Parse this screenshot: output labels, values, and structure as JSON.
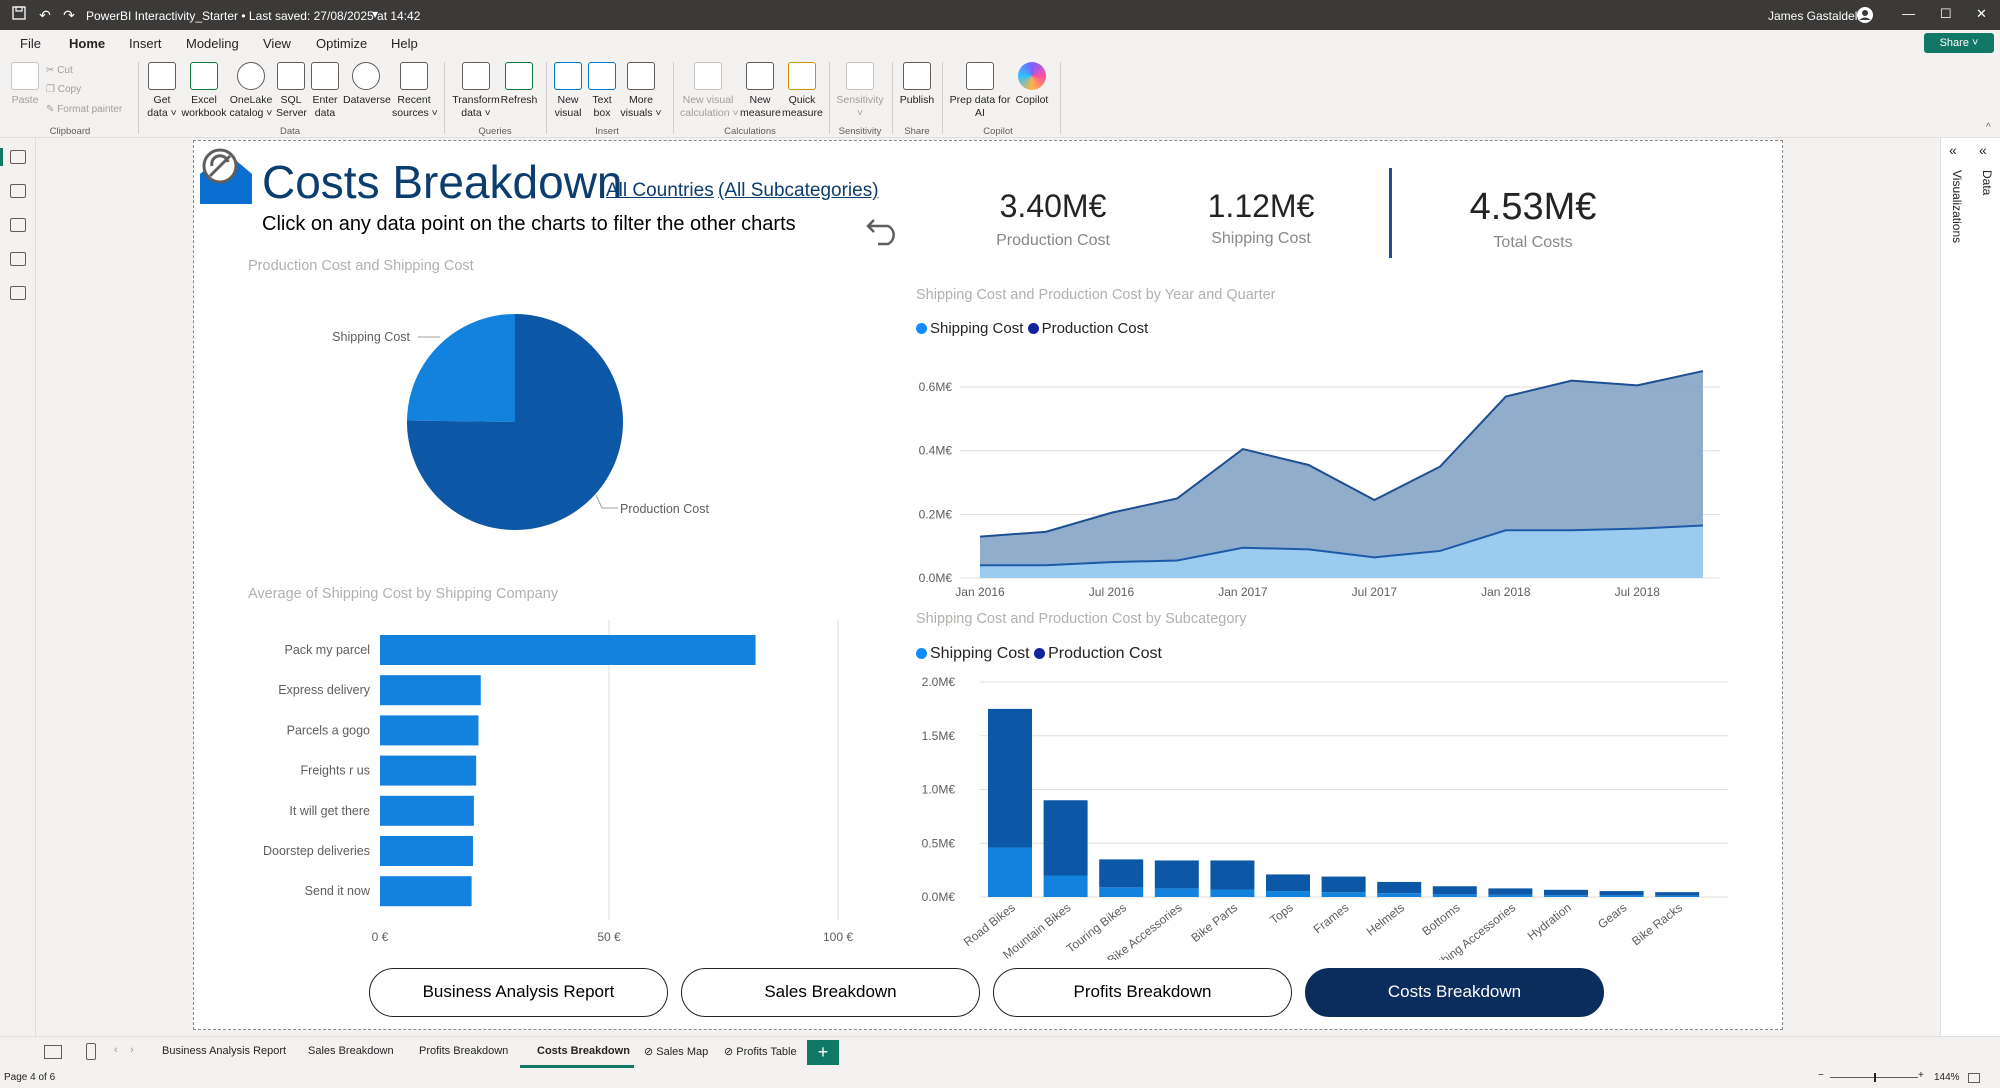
{
  "titlebar": {
    "title": "PowerBI Interactivity_Starter  •  Last saved: 27/08/2025 at 14:42",
    "user": "James Gastaldello",
    "dropdown_glyph": "▾",
    "window_controls": [
      "—",
      "☐",
      "✕"
    ]
  },
  "menu": {
    "tabs": [
      "File",
      "Home",
      "Insert",
      "Modeling",
      "View",
      "Optimize",
      "Help"
    ],
    "active": "Home",
    "share": "Share"
  },
  "ribbon": {
    "clipboard": {
      "paste": "Paste",
      "cut": "Cut",
      "copy": "Copy",
      "format_painter": "Format painter",
      "group": "Clipboard"
    },
    "data": {
      "buttons": [
        "Get\ndata ˅",
        "Excel\nworkbook",
        "OneLake\ncatalog ˅",
        "SQL\nServer",
        "Enter\ndata",
        "Dataverse",
        "Recent\nsources ˅"
      ],
      "group": "Data"
    },
    "queries": {
      "buttons": [
        "Transform\ndata ˅",
        "Refresh"
      ],
      "group": "Queries"
    },
    "insert": {
      "buttons": [
        "New\nvisual",
        "Text\nbox",
        "More\nvisuals ˅"
      ],
      "group": "Insert"
    },
    "calculations": {
      "buttons": [
        "New visual\ncalculation ˅",
        "New\nmeasure",
        "Quick\nmeasure"
      ],
      "group": "Calculations"
    },
    "sensitivity": {
      "buttons": [
        "Sensitivity\n˅"
      ],
      "group": "Sensitivity"
    },
    "share": {
      "buttons": [
        "Publish"
      ],
      "group": "Share"
    },
    "copilot": {
      "buttons": [
        "Prep data for\nAI",
        "Copilot"
      ],
      "group": "Copilot"
    }
  },
  "right_panes": {
    "visualizations": "Visualizations",
    "data": "Data"
  },
  "report": {
    "title": "Costs Breakdown",
    "filter_countries": "All Countries",
    "filter_subcategories": "(All Subcategories)",
    "subtitle": "Click on any data point on the charts to filter the other charts",
    "kpis": [
      {
        "value": "3.40M€",
        "label": "Production Cost"
      },
      {
        "value": "1.12M€",
        "label": "Shipping Cost"
      },
      {
        "value": "4.53M€",
        "label": "Total Costs"
      }
    ],
    "nav_buttons": [
      "Business Analysis Report",
      "Sales Breakdown",
      "Profits Breakdown",
      "Costs Breakdown"
    ],
    "active_nav": "Costs Breakdown"
  },
  "colors": {
    "shipping": "#118dff",
    "production": "#12239e",
    "shipping_area": "#96c4ea",
    "production_area": "#8ba8c8",
    "line_dark": "#1d4f91",
    "brand": "#0b3d6e",
    "accent": "#117865"
  },
  "chart_data": [
    {
      "type": "pie",
      "title": "Production Cost and Shipping Cost",
      "labels": [
        "Shipping Cost",
        "Production Cost"
      ],
      "values": [
        1.12,
        3.4
      ],
      "unit": "M€"
    },
    {
      "type": "area",
      "title": "Shipping Cost and Production Cost by Year and Quarter",
      "legend": [
        "Shipping Cost",
        "Production Cost"
      ],
      "x_ticks": [
        "Jan 2016",
        "Jul 2016",
        "Jan 2017",
        "Jul 2017",
        "Jan 2018",
        "Jul 2018"
      ],
      "y_ticks": [
        "0.0M€",
        "0.2M€",
        "0.4M€",
        "0.6M€"
      ],
      "ylim": [
        0,
        0.6
      ],
      "x": [
        "2016 Q1",
        "2016 Q2",
        "2016 Q3",
        "2016 Q4",
        "2017 Q1",
        "2017 Q2",
        "2017 Q3",
        "2017 Q4",
        "2018 Q1",
        "2018 Q2",
        "2018 Q3",
        "2018 Q4"
      ],
      "series": [
        {
          "name": "Shipping Cost",
          "values": [
            0.04,
            0.04,
            0.05,
            0.055,
            0.095,
            0.09,
            0.065,
            0.085,
            0.15,
            0.15,
            0.155,
            0.165
          ]
        },
        {
          "name": "Production Cost",
          "values": [
            0.13,
            0.145,
            0.205,
            0.25,
            0.405,
            0.355,
            0.245,
            0.35,
            0.57,
            0.62,
            0.605,
            0.65
          ]
        }
      ]
    },
    {
      "type": "bar",
      "title": "Average of Shipping Cost by Shipping Company",
      "categories": [
        "Pack my parcel",
        "Express delivery",
        "Parcels a gogo",
        "Freights r us",
        "It will get there",
        "Doorstep deliveries",
        "Send it now"
      ],
      "values": [
        82,
        22,
        21.5,
        21,
        20.5,
        20.3,
        20
      ],
      "x_ticks": [
        "0 €",
        "50 €",
        "100 €"
      ],
      "xlim": [
        0,
        100
      ]
    },
    {
      "type": "bar",
      "title": "Shipping Cost and Production Cost by Subcategory",
      "legend": [
        "Shipping Cost",
        "Production Cost"
      ],
      "categories": [
        "Road Bikes",
        "Mountain Bikes",
        "Touring Bikes",
        "Bike Accessories",
        "Bike Parts",
        "Tops",
        "Frames",
        "Helmets",
        "Bottoms",
        "Clothing Accessories",
        "Hydration",
        "Gears",
        "Bike Racks"
      ],
      "series": [
        {
          "name": "Shipping Cost",
          "values": [
            0.46,
            0.2,
            0.09,
            0.08,
            0.07,
            0.055,
            0.045,
            0.035,
            0.025,
            0.02,
            0.017,
            0.015,
            0.012
          ]
        },
        {
          "name": "Production Cost",
          "values": [
            1.29,
            0.7,
            0.26,
            0.26,
            0.27,
            0.155,
            0.145,
            0.105,
            0.075,
            0.06,
            0.05,
            0.04,
            0.033
          ]
        }
      ],
      "y_ticks": [
        "0.0M€",
        "0.5M€",
        "1.0M€",
        "1.5M€",
        "2.0M€"
      ],
      "ylim": [
        0,
        2.0
      ],
      "stacked": true
    }
  ],
  "page_tabs": [
    "Business Analysis Report",
    "Sales Breakdown",
    "Profits Breakdown",
    "Costs Breakdown",
    "Sales Map",
    "Profits Table"
  ],
  "active_page_tab": "Costs Breakdown",
  "add_page": "+",
  "status": {
    "page": "Page 4 of 6",
    "zoom": "144%"
  }
}
